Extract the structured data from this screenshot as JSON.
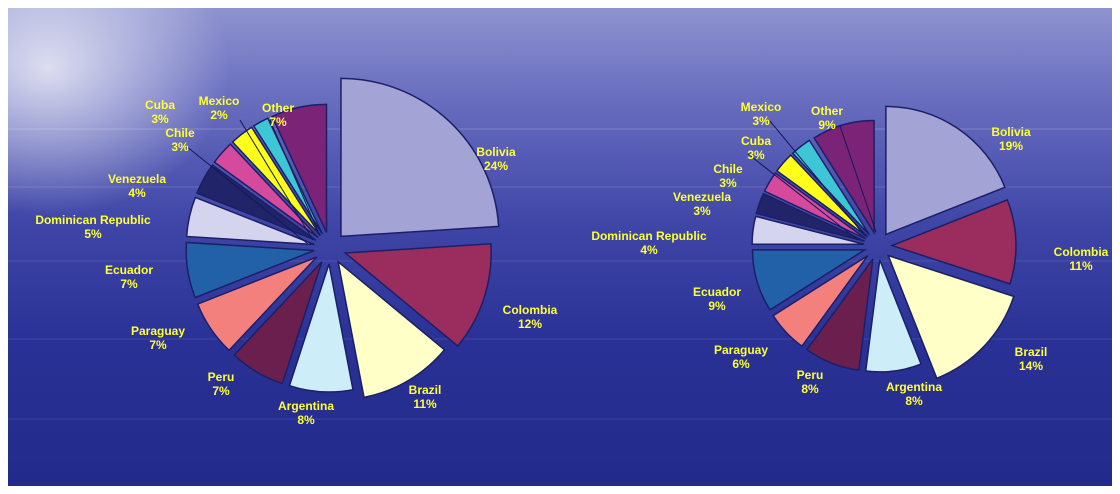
{
  "chart_data": [
    {
      "type": "pie",
      "title": "",
      "slices": [
        {
          "label": "Bolivia",
          "percent_label": "24%",
          "value": 24,
          "color": "#a3a3d6"
        },
        {
          "label": "Colombia",
          "percent_label": "12%",
          "value": 12,
          "color": "#9b2c5e"
        },
        {
          "label": "Brazil",
          "percent_label": "11%",
          "value": 11,
          "color": "#ffffc8"
        },
        {
          "label": "Argentina",
          "percent_label": "8%",
          "value": 8,
          "color": "#cdeef8"
        },
        {
          "label": "Peru",
          "percent_label": "7%",
          "value": 7,
          "color": "#6a1f4f"
        },
        {
          "label": "Paraguay",
          "percent_label": "7%",
          "value": 7,
          "color": "#f4807d"
        },
        {
          "label": "Ecuador",
          "percent_label": "7%",
          "value": 7,
          "color": "#2261a8"
        },
        {
          "label": "Dominican Republic",
          "percent_label": "5%",
          "value": 5,
          "color": "#d4d4ee"
        },
        {
          "label": "Venezuela",
          "percent_label": "4%",
          "value": 4,
          "color": "#22246a"
        },
        {
          "label": "Chile",
          "percent_label": "3%",
          "value": 3,
          "color": "#d54a9c"
        },
        {
          "label": "Cuba",
          "percent_label": "3%",
          "value": 3,
          "color": "#ffff1a"
        },
        {
          "label": "Mexico",
          "percent_label": "2%",
          "value": 2,
          "color": "#3cc6d6"
        },
        {
          "label": "Other",
          "percent_label": "7%",
          "value": 7,
          "color": "#7b2376"
        }
      ]
    },
    {
      "type": "pie",
      "title": "",
      "slices": [
        {
          "label": "Bolivia",
          "percent_label": "19%",
          "value": 19,
          "color": "#a3a3d6"
        },
        {
          "label": "Colombia",
          "percent_label": "11%",
          "value": 11,
          "color": "#9b2c5e"
        },
        {
          "label": "Brazil",
          "percent_label": "14%",
          "value": 14,
          "color": "#ffffc8"
        },
        {
          "label": "Argentina",
          "percent_label": "8%",
          "value": 8,
          "color": "#cdeef8"
        },
        {
          "label": "Peru",
          "percent_label": "8%",
          "value": 8,
          "color": "#6a1f4f"
        },
        {
          "label": "Paraguay",
          "percent_label": "6%",
          "value": 6,
          "color": "#f4807d"
        },
        {
          "label": "Ecuador",
          "percent_label": "9%",
          "value": 9,
          "color": "#2261a8"
        },
        {
          "label": "Dominican Republic",
          "percent_label": "4%",
          "value": 4,
          "color": "#d4d4ee"
        },
        {
          "label": "Venezuela",
          "percent_label": "3%",
          "value": 3,
          "color": "#22246a"
        },
        {
          "label": "Chile",
          "percent_label": "3%",
          "value": 3,
          "color": "#d54a9c"
        },
        {
          "label": "Cuba",
          "percent_label": "3%",
          "value": 3,
          "color": "#ffff1a"
        },
        {
          "label": "Mexico",
          "percent_label": "3%",
          "value": 3,
          "color": "#3cc6d6"
        },
        {
          "label": "Other",
          "percent_label": "9%",
          "value": 9,
          "color": "#7b2376"
        }
      ]
    }
  ]
}
